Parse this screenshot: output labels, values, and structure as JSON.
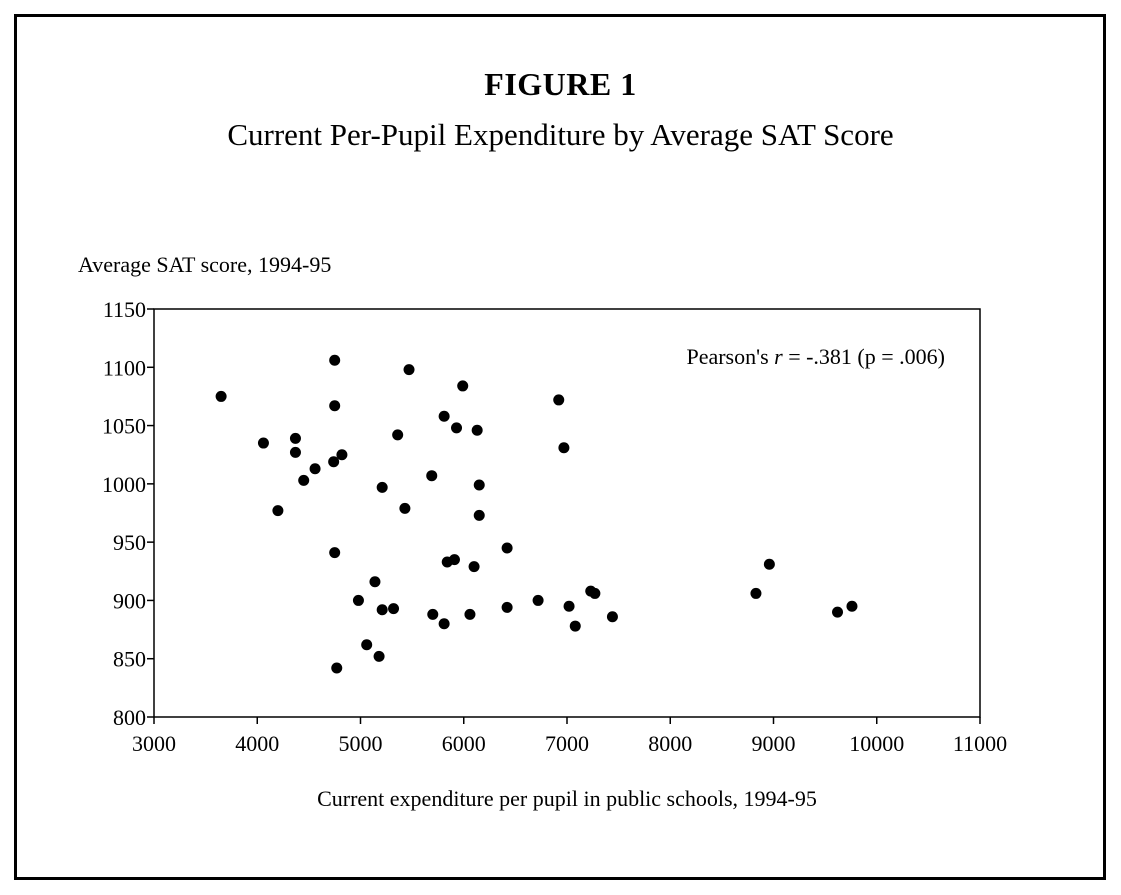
{
  "figure": {
    "title": "FIGURE 1",
    "subtitle": "Current Per-Pupil Expenditure by Average SAT Score"
  },
  "chart_data": {
    "type": "scatter",
    "title": "FIGURE 1",
    "subtitle": "Current Per-Pupil Expenditure by Average SAT Score",
    "xlabel": "Current expenditure per pupil in public schools, 1994-95",
    "ylabel": "Average SAT score, 1994-95",
    "xlim": [
      3000,
      11000
    ],
    "ylim": [
      800,
      1150
    ],
    "xticks": [
      3000,
      4000,
      5000,
      6000,
      7000,
      8000,
      9000,
      10000,
      11000
    ],
    "yticks": [
      800,
      850,
      900,
      950,
      1000,
      1050,
      1100,
      1150
    ],
    "grid": false,
    "annotation": "Pearson's r = -.381 (p = .006)",
    "points": [
      {
        "x": 3650,
        "y": 1075
      },
      {
        "x": 4060,
        "y": 1035
      },
      {
        "x": 4200,
        "y": 977
      },
      {
        "x": 4370,
        "y": 1039
      },
      {
        "x": 4370,
        "y": 1027
      },
      {
        "x": 4450,
        "y": 1003
      },
      {
        "x": 4560,
        "y": 1013
      },
      {
        "x": 4750,
        "y": 1106
      },
      {
        "x": 4750,
        "y": 1067
      },
      {
        "x": 4740,
        "y": 1019
      },
      {
        "x": 4820,
        "y": 1025
      },
      {
        "x": 4750,
        "y": 941
      },
      {
        "x": 4770,
        "y": 842
      },
      {
        "x": 4980,
        "y": 900
      },
      {
        "x": 5060,
        "y": 862
      },
      {
        "x": 5140,
        "y": 916
      },
      {
        "x": 5180,
        "y": 852
      },
      {
        "x": 5210,
        "y": 892
      },
      {
        "x": 5210,
        "y": 997
      },
      {
        "x": 5320,
        "y": 893
      },
      {
        "x": 5360,
        "y": 1042
      },
      {
        "x": 5430,
        "y": 979
      },
      {
        "x": 5470,
        "y": 1098
      },
      {
        "x": 5690,
        "y": 1007
      },
      {
        "x": 5700,
        "y": 888
      },
      {
        "x": 5810,
        "y": 880
      },
      {
        "x": 5810,
        "y": 1058
      },
      {
        "x": 5840,
        "y": 933
      },
      {
        "x": 5910,
        "y": 935
      },
      {
        "x": 5930,
        "y": 1048
      },
      {
        "x": 5990,
        "y": 1084
      },
      {
        "x": 6060,
        "y": 888
      },
      {
        "x": 6100,
        "y": 929
      },
      {
        "x": 6130,
        "y": 1046
      },
      {
        "x": 6150,
        "y": 999
      },
      {
        "x": 6150,
        "y": 973
      },
      {
        "x": 6420,
        "y": 945
      },
      {
        "x": 6420,
        "y": 894
      },
      {
        "x": 6720,
        "y": 900
      },
      {
        "x": 6920,
        "y": 1072
      },
      {
        "x": 6970,
        "y": 1031
      },
      {
        "x": 7020,
        "y": 895
      },
      {
        "x": 7080,
        "y": 878
      },
      {
        "x": 7230,
        "y": 908
      },
      {
        "x": 7270,
        "y": 906
      },
      {
        "x": 7440,
        "y": 886
      },
      {
        "x": 8830,
        "y": 906
      },
      {
        "x": 8960,
        "y": 931
      },
      {
        "x": 9620,
        "y": 890
      },
      {
        "x": 9760,
        "y": 895
      }
    ]
  }
}
